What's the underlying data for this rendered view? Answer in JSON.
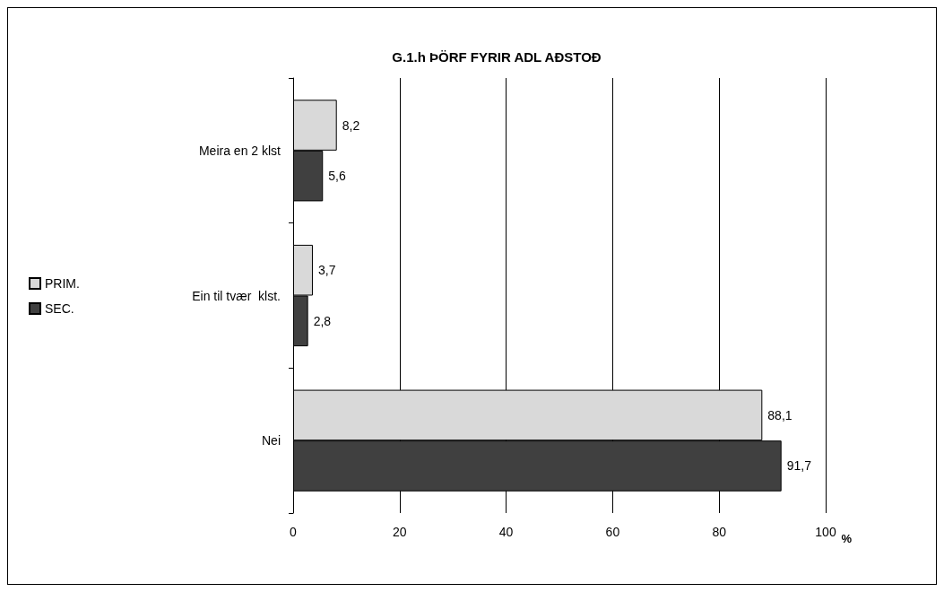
{
  "chart_data": {
    "type": "bar",
    "orientation": "horizontal",
    "title": "G.1.h ÞÖRF FYRIR ADL AÐSTOÐ",
    "xlabel": "%",
    "categories": [
      "Meira en 2 klst",
      "Ein til tvær  klst.",
      "Nei"
    ],
    "series": [
      {
        "name": "PRIM.",
        "color": "#d9d9d9",
        "values": [
          8.2,
          3.7,
          88.1
        ],
        "value_labels": [
          "8,2",
          "3,7",
          "88,1"
        ]
      },
      {
        "name": "SEC.",
        "color": "#404040",
        "values": [
          5.6,
          2.8,
          91.7
        ],
        "value_labels": [
          "5,6",
          "2,8",
          "91,7"
        ]
      }
    ],
    "xlim": [
      0,
      100
    ],
    "xticks": [
      0,
      20,
      40,
      60,
      80,
      100
    ],
    "grid": "x",
    "legend": "left"
  }
}
